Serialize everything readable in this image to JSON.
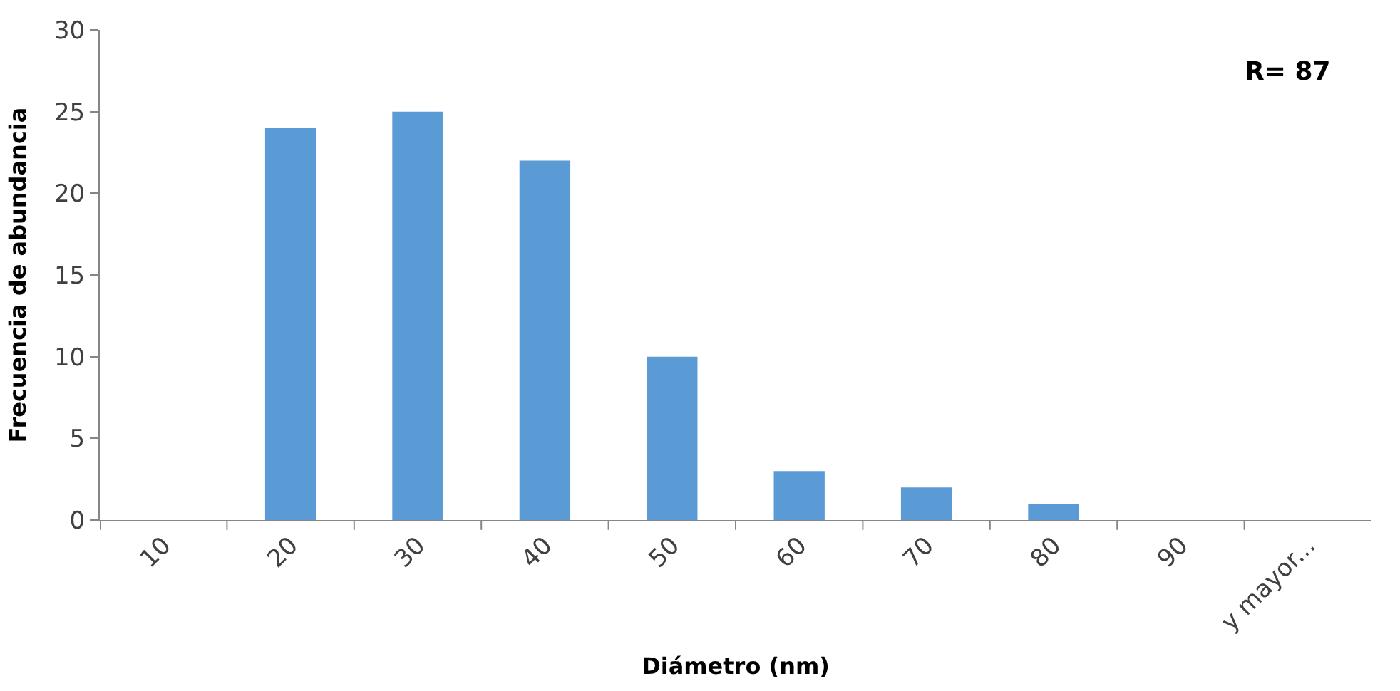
{
  "chart_data": {
    "type": "bar",
    "xlabel": "Diámetro (nm)",
    "ylabel": "Frecuencia de abundancia",
    "categories": [
      "10",
      "20",
      "30",
      "40",
      "50",
      "60",
      "70",
      "80",
      "90",
      "y mayor..."
    ],
    "values": [
      0,
      24,
      25,
      22,
      10,
      3,
      2,
      1,
      0,
      0
    ],
    "color": "#5b9bd5",
    "ylim": [
      0,
      30
    ],
    "yticks": [
      0,
      5,
      10,
      15,
      20,
      25,
      30
    ],
    "annotations": [
      "R= 87"
    ]
  }
}
